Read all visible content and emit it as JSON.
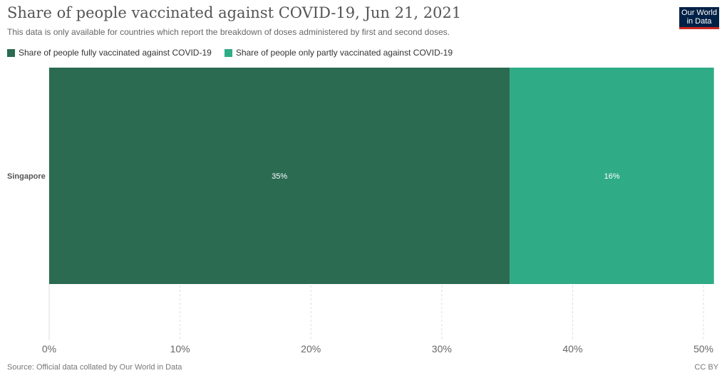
{
  "header": {
    "title": "Share of people vaccinated against COVID-19, Jun 21, 2021",
    "subtitle": "This data is only available for countries which report the breakdown of doses administered by first and second doses."
  },
  "logo": {
    "line1": "Our World",
    "line2": "in Data"
  },
  "footer": {
    "source": "Source: Official data collated by Our World in Data",
    "license": "CC BY"
  },
  "colors": {
    "fully": "#2a6b52",
    "partly": "#2fab86"
  },
  "chart_data": {
    "type": "bar",
    "orientation": "horizontal",
    "stacked": true,
    "categories": [
      "Singapore"
    ],
    "series": [
      {
        "name": "Share of people fully vaccinated against COVID-19",
        "values": [
          35.2
        ],
        "label": "35%"
      },
      {
        "name": "Share of people only partly vaccinated against COVID-19",
        "values": [
          15.6
        ],
        "label": "16%"
      }
    ],
    "xlim": [
      0,
      50
    ],
    "xticks": [
      0,
      10,
      20,
      30,
      40,
      50
    ],
    "xtick_labels": [
      "0%",
      "10%",
      "20%",
      "30%",
      "40%",
      "50%"
    ],
    "grid": true,
    "legend_position": "top-left"
  }
}
